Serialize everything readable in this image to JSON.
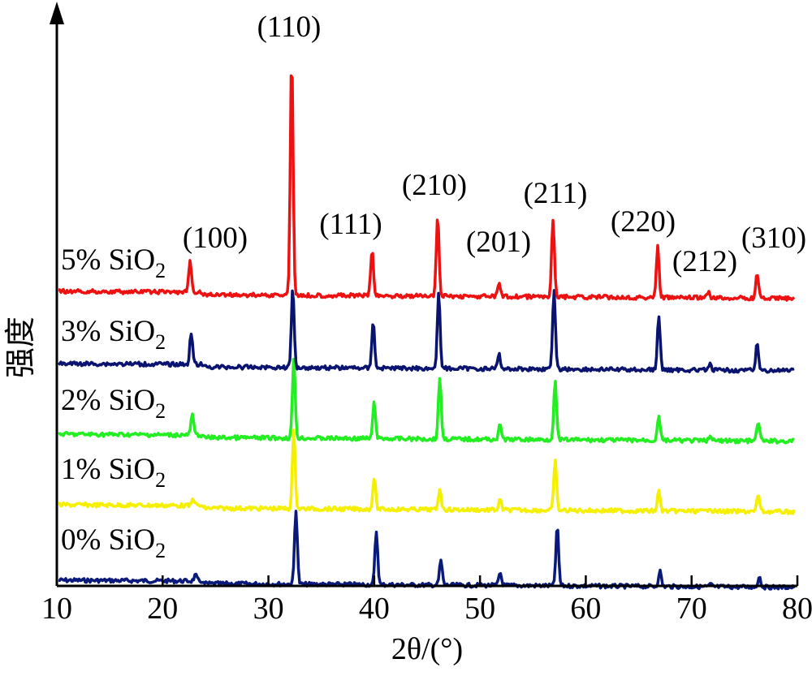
{
  "chart_data": {
    "type": "line",
    "xlabel": "2θ/(°)",
    "ylabel": "强度",
    "xlim": [
      10,
      80
    ],
    "x_ticks": [
      "10",
      "20",
      "30",
      "40",
      "50",
      "60",
      "70",
      "80"
    ],
    "grid": false,
    "peak_labels": [
      {
        "text": "(100)",
        "x": 22.6
      },
      {
        "text": "(110)",
        "x": 32.2
      },
      {
        "text": "(111)",
        "x": 39.8
      },
      {
        "text": "(210)",
        "x": 46.0
      },
      {
        "text": "(201)",
        "x": 51.8
      },
      {
        "text": "(211)",
        "x": 56.9
      },
      {
        "text": "(220)",
        "x": 66.8
      },
      {
        "text": "(212)",
        "x": 71.6
      },
      {
        "text": "(310)",
        "x": 76.2
      }
    ],
    "series": [
      {
        "name": "0% SiO",
        "subscript": "2",
        "color": "#0a1a7a",
        "baseline": 0,
        "peaks": [
          {
            "x": 23.1,
            "h": 0.08
          },
          {
            "x": 32.6,
            "h": 1.05
          },
          {
            "x": 40.2,
            "h": 0.75
          },
          {
            "x": 46.3,
            "h": 0.35
          },
          {
            "x": 51.9,
            "h": 0.18
          },
          {
            "x": 57.3,
            "h": 0.83
          },
          {
            "x": 67.0,
            "h": 0.22
          },
          {
            "x": 71.8,
            "h": 0.03
          },
          {
            "x": 76.4,
            "h": 0.15
          }
        ]
      },
      {
        "name": "1% SiO",
        "subscript": "2",
        "color": "#f5f000",
        "baseline": 1,
        "peaks": [
          {
            "x": 22.9,
            "h": 0.1
          },
          {
            "x": 32.4,
            "h": 1.1
          },
          {
            "x": 40.0,
            "h": 0.45
          },
          {
            "x": 46.2,
            "h": 0.3
          },
          {
            "x": 51.9,
            "h": 0.14
          },
          {
            "x": 57.1,
            "h": 0.7
          },
          {
            "x": 66.9,
            "h": 0.28
          },
          {
            "x": 71.7,
            "h": 0.06
          },
          {
            "x": 76.3,
            "h": 0.25
          }
        ]
      },
      {
        "name": "2% SiO",
        "subscript": "2",
        "color": "#22ee22",
        "baseline": 2,
        "peaks": [
          {
            "x": 22.8,
            "h": 0.28
          },
          {
            "x": 32.4,
            "h": 1.1
          },
          {
            "x": 40.0,
            "h": 0.5
          },
          {
            "x": 46.2,
            "h": 0.87
          },
          {
            "x": 51.9,
            "h": 0.2
          },
          {
            "x": 57.1,
            "h": 0.82
          },
          {
            "x": 66.9,
            "h": 0.36
          },
          {
            "x": 71.7,
            "h": 0.06
          },
          {
            "x": 76.3,
            "h": 0.28
          }
        ]
      },
      {
        "name": "3% SiO",
        "subscript": "2",
        "color": "#0a1470",
        "baseline": 3,
        "peaks": [
          {
            "x": 22.7,
            "h": 0.45
          },
          {
            "x": 32.3,
            "h": 1.1
          },
          {
            "x": 39.9,
            "h": 0.65
          },
          {
            "x": 46.1,
            "h": 1.05
          },
          {
            "x": 51.8,
            "h": 0.2
          },
          {
            "x": 57.0,
            "h": 1.1
          },
          {
            "x": 66.9,
            "h": 0.75
          },
          {
            "x": 71.7,
            "h": 0.08
          },
          {
            "x": 76.2,
            "h": 0.38
          }
        ]
      },
      {
        "name": "5% SiO",
        "subscript": "2",
        "color": "#ee1111",
        "baseline": 4,
        "peaks": [
          {
            "x": 22.6,
            "h": 0.42
          },
          {
            "x": 32.2,
            "h": 3.4
          },
          {
            "x": 39.8,
            "h": 0.65
          },
          {
            "x": 46.0,
            "h": 1.1
          },
          {
            "x": 51.8,
            "h": 0.18
          },
          {
            "x": 56.9,
            "h": 1.1
          },
          {
            "x": 66.8,
            "h": 0.72
          },
          {
            "x": 71.6,
            "h": 0.08
          },
          {
            "x": 76.2,
            "h": 0.35
          }
        ]
      }
    ]
  }
}
